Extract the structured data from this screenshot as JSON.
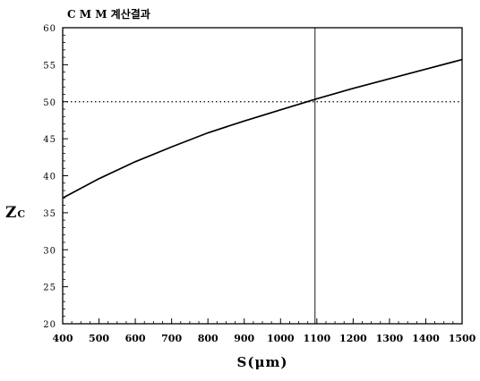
{
  "chart_data": {
    "type": "line",
    "title": "C M M 계산결과",
    "xlabel": "S(μm)",
    "ylabel_main": "Z",
    "ylabel_sub": "C",
    "xlim": [
      400,
      1500
    ],
    "ylim": [
      20,
      60
    ],
    "x_ticks": [
      400,
      500,
      600,
      700,
      800,
      900,
      1000,
      1100,
      1200,
      1300,
      1400,
      1500
    ],
    "y_ticks": [
      20,
      25,
      30,
      35,
      40,
      45,
      50,
      55,
      60
    ],
    "grid": false,
    "series": [
      {
        "x": [
          400,
          500,
          600,
          700,
          800,
          900,
          1000,
          1100,
          1200,
          1300,
          1400,
          1500
        ],
        "y": [
          37.0,
          39.6,
          41.9,
          43.9,
          45.8,
          47.4,
          48.9,
          50.4,
          51.8,
          53.1,
          54.4,
          55.7
        ]
      }
    ],
    "reference_lines": [
      {
        "orientation": "horizontal",
        "value": 50,
        "style": "dotted"
      },
      {
        "orientation": "vertical",
        "value": 1095,
        "style": "solid"
      }
    ],
    "colors": {
      "line": "#000000",
      "axis": "#000000"
    }
  }
}
